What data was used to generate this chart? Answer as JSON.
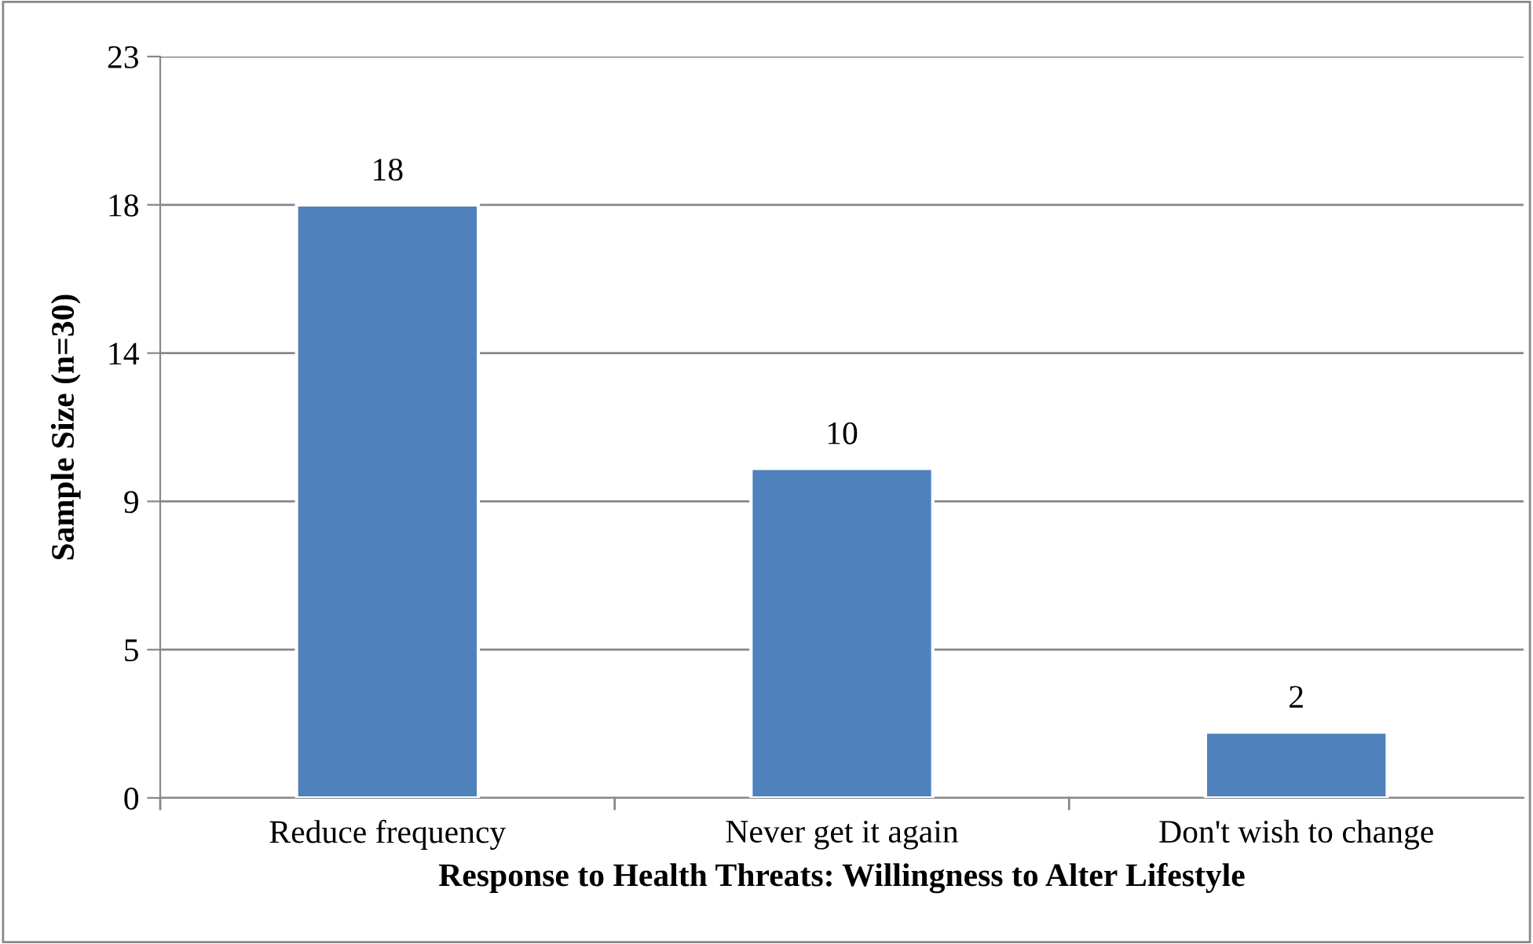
{
  "chart_data": {
    "type": "bar",
    "xlabel": "Response to Health Threats: Willingness to Alter Lifestyle",
    "ylabel": "Sample Size (n=30)",
    "categories": [
      "Reduce frequency",
      "Never get it again",
      "Don't wish to change"
    ],
    "values": [
      18,
      10,
      2
    ],
    "color": "#4f81bd",
    "ylim": [
      0,
      22.5
    ],
    "yticks": [
      0,
      {
        "value": 4.5,
        "label": "5"
      },
      9,
      {
        "value": 13.5,
        "label": "14"
      },
      18,
      {
        "value": 22.5,
        "label": "23"
      }
    ],
    "grid": "y",
    "data_labels": true
  }
}
